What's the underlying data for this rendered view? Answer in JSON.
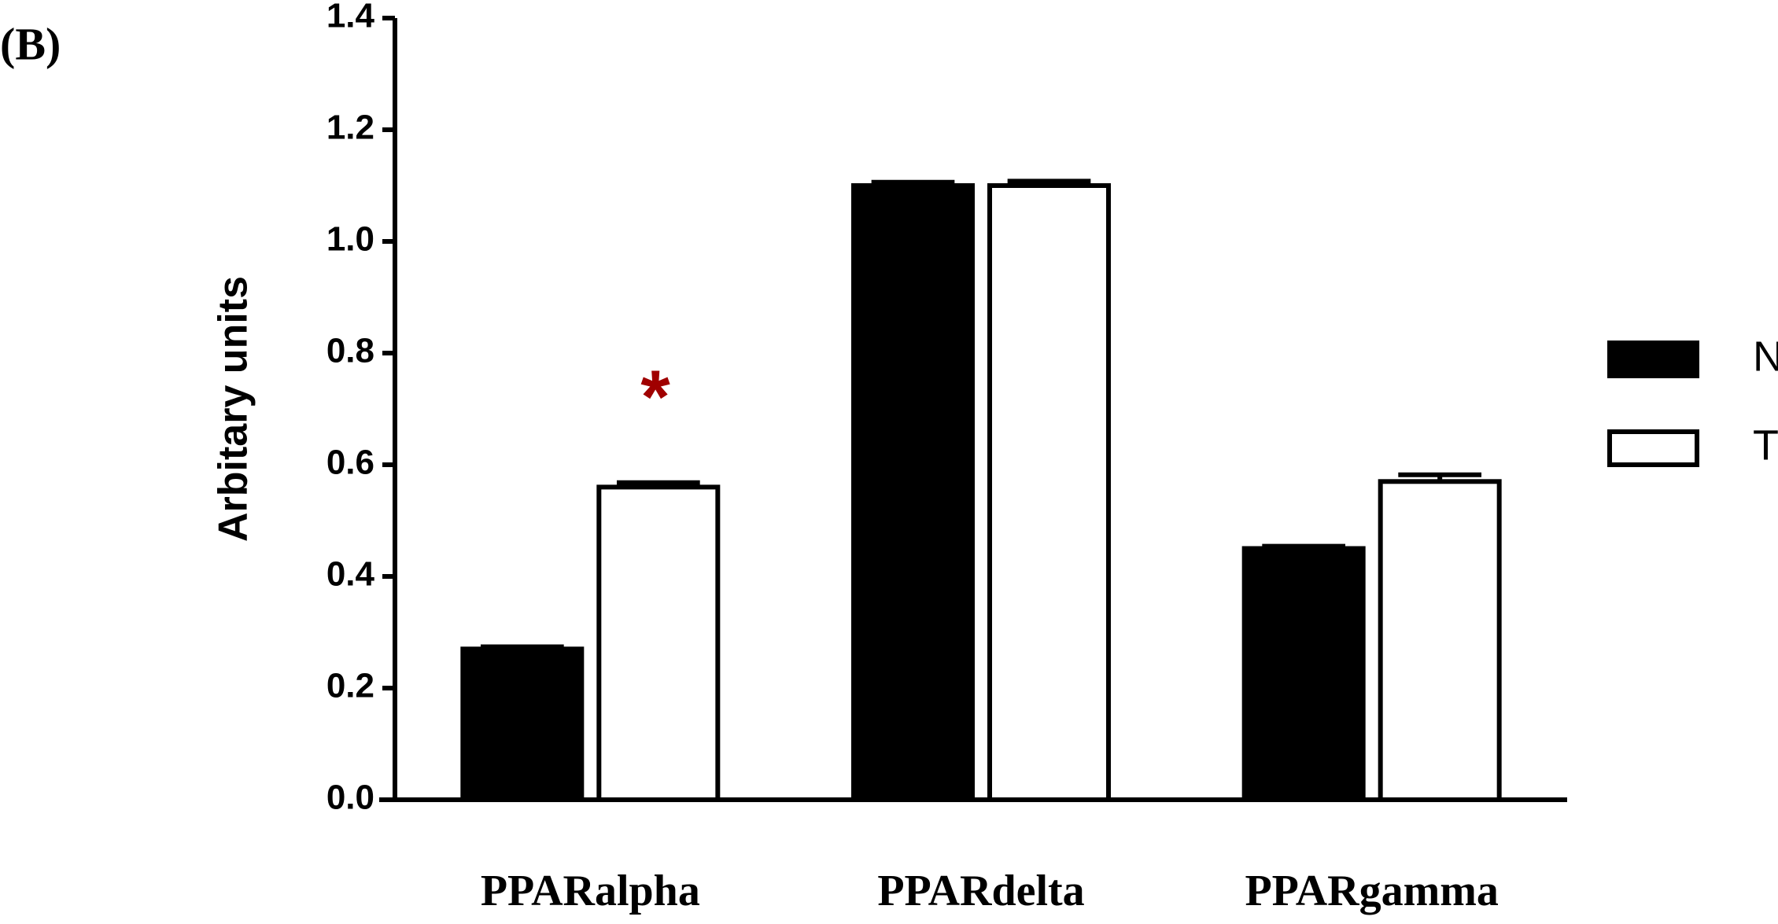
{
  "chart_data": {
    "type": "bar",
    "panel_label": "(B)",
    "y_label": "Arbitary units",
    "categories": [
      "PPARalpha",
      "PPARdelta",
      "PPARgamma"
    ],
    "series": [
      {
        "name": "NT",
        "color": "#000000",
        "values": [
          0.27,
          1.1,
          0.45
        ],
        "errors": [
          0.004,
          0.006,
          0.004
        ]
      },
      {
        "name": "T",
        "color": "#ffffff",
        "values": [
          0.56,
          1.1,
          0.57
        ],
        "errors": [
          0.008,
          0.008,
          0.012
        ]
      }
    ],
    "annotation": "*",
    "annotation_color": "#a00000",
    "ylim": [
      0,
      1.4
    ],
    "yticks": [
      {
        "value": 0,
        "label": "0.0"
      },
      {
        "value": 0.2,
        "label": "0.2"
      },
      {
        "value": 0.4,
        "label": "0.4"
      },
      {
        "value": 0.6,
        "label": "0.6"
      },
      {
        "value": 0.8,
        "label": "0.8"
      },
      {
        "value": 1.0,
        "label": "1.0"
      },
      {
        "value": 1.2,
        "label": "1.2"
      },
      {
        "value": 1.4,
        "label": "1.4"
      }
    ],
    "legend": "right"
  }
}
